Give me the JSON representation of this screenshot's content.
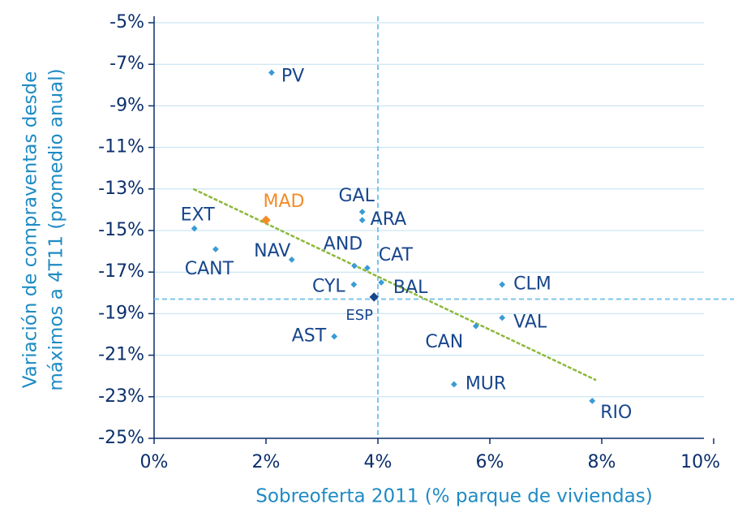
{
  "chart_data": {
    "type": "scatter",
    "xlabel": "Sobreoferta 2011 (% parque de viviendas)",
    "ylabel": [
      "Variación de compraventas desde",
      "máximos a 4T11 (promedio anual)"
    ],
    "xlim": [
      0,
      10
    ],
    "xticks": [
      {
        "value": 0,
        "label": "0%"
      },
      {
        "value": 2,
        "label": "2%"
      },
      {
        "value": 4,
        "label": "4%"
      },
      {
        "value": 6,
        "label": "6%"
      },
      {
        "value": 8,
        "label": "8%"
      },
      {
        "value": 10,
        "label": "10%"
      }
    ],
    "ylim": [
      -25,
      -5
    ],
    "yticks": [
      {
        "value": -5,
        "label": "-5%"
      },
      {
        "value": -7,
        "label": "-7%"
      },
      {
        "value": -9,
        "label": "-9%"
      },
      {
        "value": -11,
        "label": "-11%"
      },
      {
        "value": -13,
        "label": "-13%"
      },
      {
        "value": -15,
        "label": "-15%"
      },
      {
        "value": -17,
        "label": "-17%"
      },
      {
        "value": -19,
        "label": "-19%"
      },
      {
        "value": -21,
        "label": "-21%"
      },
      {
        "value": -23,
        "label": "-23%"
      },
      {
        "value": -25,
        "label": "-25%"
      }
    ],
    "grid": true,
    "color": "#3a9bd5",
    "label_color": "#17468c",
    "points": [
      {
        "label": "PV",
        "x": 2.1,
        "y": -7.4
      },
      {
        "label": "MAD",
        "x": 2.0,
        "y": -14.5,
        "color": "#f28c28"
      },
      {
        "label": "EXT",
        "x": 0.72,
        "y": -14.9
      },
      {
        "label": "CANT",
        "x": 1.1,
        "y": -15.9
      },
      {
        "label": "NAV",
        "x": 2.46,
        "y": -16.4
      },
      {
        "label": "GAL",
        "x": 3.72,
        "y": -14.1
      },
      {
        "label": "ARA",
        "x": 3.72,
        "y": -14.5
      },
      {
        "label": "AND",
        "x": 3.58,
        "y": -16.7
      },
      {
        "label": "CAT",
        "x": 3.81,
        "y": -16.8
      },
      {
        "label": "CYL",
        "x": 3.57,
        "y": -17.6
      },
      {
        "label": "BAL",
        "x": 4.06,
        "y": -17.5
      },
      {
        "label": "ESP",
        "x": 3.93,
        "y": -18.2,
        "color": "#17468c"
      },
      {
        "label": "AST",
        "x": 3.22,
        "y": -20.1
      },
      {
        "label": "CLM",
        "x": 6.22,
        "y": -17.6
      },
      {
        "label": "VAL",
        "x": 6.22,
        "y": -19.2
      },
      {
        "label": "CAN",
        "x": 5.75,
        "y": -19.6
      },
      {
        "label": "MUR",
        "x": 5.36,
        "y": -22.4
      },
      {
        "label": "RIO",
        "x": 7.83,
        "y": -23.2
      }
    ],
    "reference_x": 4.0,
    "reference_y": -18.3,
    "trendline": {
      "x": [
        0.7,
        7.9
      ],
      "y": [
        -13.0,
        -22.2
      ],
      "color": "#8db83a"
    }
  }
}
